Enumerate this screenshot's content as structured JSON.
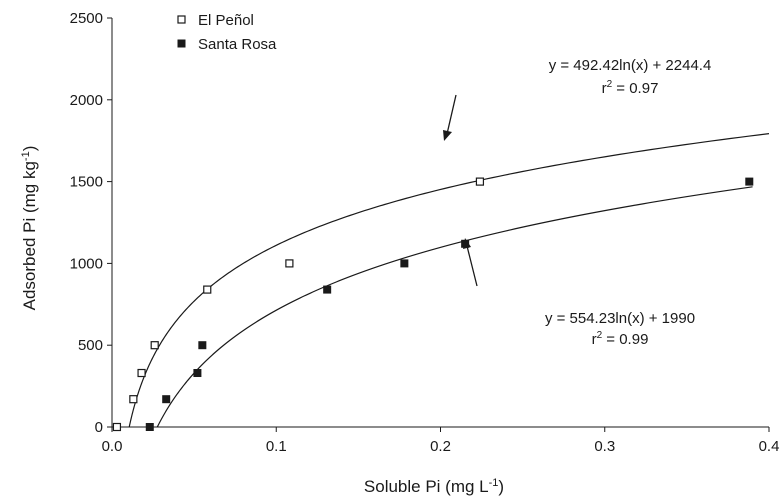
{
  "chart_data": {
    "type": "scatter",
    "xlabel": "Soluble Pi (mg L",
    "xlabel_sup": "-1",
    "xlabel_end": ")",
    "ylabel": "Adsorbed Pi (mg kg",
    "ylabel_sup": "-1",
    "ylabel_end": ")",
    "xlim": [
      0,
      0.4
    ],
    "ylim": [
      0,
      2500
    ],
    "x_ticks": [
      0.0,
      0.1,
      0.2,
      0.3,
      0.4
    ],
    "x_tick_labels": [
      "0.0",
      "0.1",
      "0.2",
      "0.3",
      "0.4"
    ],
    "y_ticks": [
      0,
      500,
      1000,
      1500,
      2000,
      2500
    ],
    "y_tick_labels": [
      "0",
      "500",
      "1000",
      "1500",
      "2000",
      "2500"
    ],
    "grid": false,
    "legend_position": "top-left",
    "series": [
      {
        "name": "El Peñol",
        "marker": "open-square",
        "color": "#1a1a1a",
        "x": [
          0.003,
          0.013,
          0.018,
          0.026,
          0.058,
          0.108,
          0.224
        ],
        "y": [
          0,
          170,
          330,
          500,
          840,
          1000,
          1500
        ],
        "trend": {
          "a": 492.42,
          "b": 2244.4,
          "x_range": [
            0.0105,
            0.4
          ]
        },
        "equation": "y = 492.42ln(x) + 2244.4",
        "r2_prefix": "r",
        "r2_sup": "2",
        "r2_value": " = 0.97"
      },
      {
        "name": "Santa Rosa",
        "marker": "filled-square",
        "color": "#1a1a1a",
        "x": [
          0.023,
          0.033,
          0.052,
          0.055,
          0.131,
          0.178,
          0.215,
          0.388
        ],
        "y": [
          0,
          170,
          330,
          500,
          840,
          1000,
          1120,
          1500
        ],
        "trend": {
          "a": 554.23,
          "b": 1990,
          "x_range": [
            0.0275,
            0.39
          ]
        },
        "equation": "y = 554.23ln(x) + 1990",
        "r2_prefix": "r",
        "r2_sup": "2",
        "r2_value": " = 0.99"
      }
    ]
  }
}
